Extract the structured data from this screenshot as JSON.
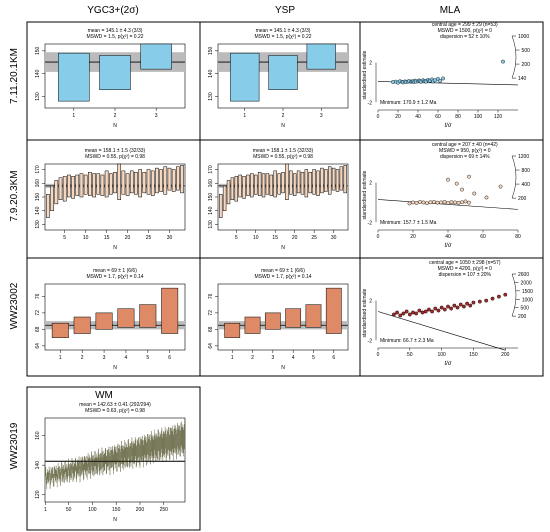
{
  "columns": [
    "YGC3+(2σ)",
    "YSP",
    "MLA"
  ],
  "rows": [
    "7.11.20.1KM",
    "7.9.20.3KM",
    "WW23002"
  ],
  "bottom_row": {
    "label": "WW23019",
    "title": "WM"
  },
  "chart_data": [
    {
      "id": "wm-7.11.20.1KM-ygc3",
      "type": "bar",
      "kind": "weighted-mean",
      "annotation": [
        "mean = 145.1 ± 4.3 (3/3)",
        "MSWD = 1.5, p(χ²) = 0.22"
      ],
      "xlabel": "N",
      "ylabel": "",
      "ylim": [
        125,
        153
      ],
      "yticks": [
        130,
        140,
        150
      ],
      "xticks": [
        1,
        2,
        3
      ],
      "mean": 145.1,
      "band": [
        140.8,
        149.4
      ],
      "bars": [
        [
          128,
          149
        ],
        [
          133,
          148
        ],
        [
          142,
          153
        ]
      ],
      "fill": "#87cdea"
    },
    {
      "id": "wm-7.11.20.1KM-ysp",
      "type": "bar",
      "kind": "weighted-mean",
      "annotation": [
        "mean = 145.1 ± 4.3 (3/3)",
        "MSWD = 1.5, p(χ²) = 0.22"
      ],
      "xlabel": "N",
      "ylabel": "",
      "ylim": [
        125,
        153
      ],
      "yticks": [
        130,
        140,
        150
      ],
      "xticks": [
        1,
        2,
        3
      ],
      "mean": 145.1,
      "band": [
        140.8,
        149.4
      ],
      "bars": [
        [
          128,
          149
        ],
        [
          133,
          148
        ],
        [
          142,
          153
        ]
      ],
      "fill": "#87cdea"
    },
    {
      "id": "rp-7.11.20.1KM",
      "type": "scatter",
      "kind": "radial-plot",
      "annotation": [
        "central age = 299 ± 29 (n=53)",
        "MSWD = 1500, p(χ²) = 0",
        "dispersion = 52 ± 10%"
      ],
      "minimum_label": "Minimum: 170.9 ± 1.2 Ma",
      "xlabel": "t/σ",
      "ylabel": "standardised estimate",
      "xlim": [
        0,
        140
      ],
      "xticks": [
        0,
        20,
        40,
        60,
        80,
        100,
        120
      ],
      "arc_ticks": [
        "1000",
        "500",
        "200",
        "140"
      ],
      "ref_line": [
        [
          0,
          0.1
        ],
        [
          140,
          -0.25
        ]
      ],
      "x": [
        15,
        18,
        20,
        22,
        24,
        25,
        27,
        28,
        30,
        31,
        33,
        34,
        35,
        36,
        37,
        38,
        40,
        41,
        42,
        43,
        45,
        46,
        47,
        48,
        50,
        51,
        52,
        54,
        55,
        57,
        60,
        62,
        65,
        125
      ],
      "y": [
        0.05,
        0.08,
        -0.02,
        0.12,
        0.06,
        0.0,
        0.1,
        0.04,
        0.08,
        0.15,
        0.06,
        0.1,
        0.12,
        0.05,
        0.18,
        0.09,
        0.11,
        0.2,
        0.14,
        0.06,
        0.22,
        0.1,
        0.16,
        0.08,
        0.25,
        0.12,
        0.18,
        0.3,
        0.1,
        0.22,
        0.35,
        0.15,
        0.4,
        2.1
      ],
      "fill": "#87cdea"
    },
    {
      "id": "wm-7.9.20.3KM-ygc3",
      "type": "bar",
      "kind": "weighted-mean",
      "annotation": [
        "mean = 158.1 ± 1.5 (32/33)",
        "MSWD = 0.55, p(χ²) = 0.98"
      ],
      "xlabel": "N",
      "ylabel": "",
      "ylim": [
        126,
        174
      ],
      "yticks": [
        130,
        140,
        150,
        160,
        170
      ],
      "xticks": [
        5,
        10,
        15,
        20,
        25,
        30
      ],
      "mean": 158.1,
      "band": [
        156.6,
        159.6
      ],
      "bars": [
        [
          135,
          152
        ],
        [
          140,
          158
        ],
        [
          145,
          162
        ],
        [
          148,
          164
        ],
        [
          147,
          165
        ],
        [
          150,
          166
        ],
        [
          149,
          165
        ],
        [
          151,
          166
        ],
        [
          150,
          167
        ],
        [
          152,
          166
        ],
        [
          151,
          168
        ],
        [
          150,
          167
        ],
        [
          152,
          167
        ],
        [
          151,
          166
        ],
        [
          150,
          169
        ],
        [
          152,
          167
        ],
        [
          153,
          168
        ],
        [
          148,
          174
        ],
        [
          152,
          169
        ],
        [
          151,
          167
        ],
        [
          153,
          169
        ],
        [
          152,
          168
        ],
        [
          150,
          170
        ],
        [
          153,
          168
        ],
        [
          152,
          170
        ],
        [
          151,
          169
        ],
        [
          153,
          171
        ],
        [
          154,
          170
        ],
        [
          152,
          172
        ],
        [
          155,
          171
        ],
        [
          154,
          170
        ],
        [
          155,
          172
        ],
        [
          153,
          173
        ]
      ],
      "fill": "#f6d7c0"
    },
    {
      "id": "wm-7.9.20.3KM-ysp",
      "type": "bar",
      "kind": "weighted-mean",
      "annotation": [
        "mean = 158.1 ± 1.5 (32/33)",
        "MSWD = 0.55, p(χ²) = 0.98"
      ],
      "xlabel": "N",
      "ylabel": "",
      "ylim": [
        126,
        174
      ],
      "yticks": [
        130,
        140,
        150,
        160,
        170
      ],
      "xticks": [
        5,
        10,
        15,
        20,
        25,
        30
      ],
      "mean": 158.1,
      "band": [
        156.6,
        159.6
      ],
      "bars": [
        [
          135,
          152
        ],
        [
          140,
          158
        ],
        [
          145,
          162
        ],
        [
          148,
          164
        ],
        [
          147,
          165
        ],
        [
          150,
          166
        ],
        [
          149,
          165
        ],
        [
          151,
          166
        ],
        [
          150,
          167
        ],
        [
          152,
          166
        ],
        [
          151,
          168
        ],
        [
          150,
          167
        ],
        [
          152,
          167
        ],
        [
          151,
          166
        ],
        [
          150,
          169
        ],
        [
          152,
          167
        ],
        [
          153,
          168
        ],
        [
          148,
          174
        ],
        [
          152,
          169
        ],
        [
          151,
          167
        ],
        [
          153,
          169
        ],
        [
          152,
          168
        ],
        [
          150,
          170
        ],
        [
          153,
          168
        ],
        [
          152,
          170
        ],
        [
          151,
          169
        ],
        [
          153,
          171
        ],
        [
          154,
          170
        ],
        [
          152,
          172
        ],
        [
          155,
          171
        ],
        [
          154,
          170
        ],
        [
          155,
          172
        ],
        [
          153,
          173
        ]
      ],
      "fill": "#f6d7c0"
    },
    {
      "id": "rp-7.9.20.3KM",
      "type": "scatter",
      "kind": "radial-plot",
      "annotation": [
        "central age = 207 ± 40 (n=42)",
        "MSWD = 950, p(χ²) = 0",
        "dispersion = 69 ± 14%"
      ],
      "minimum_label": "Minimum: 157.7 ± 1.5 Ma",
      "xlabel": "t/σ",
      "ylabel": "standardised estimate",
      "xlim": [
        0,
        80
      ],
      "xticks": [
        0,
        20,
        40,
        60,
        80
      ],
      "arc_ticks": [
        "1200",
        "800",
        "400",
        "200"
      ],
      "ref_line": [
        [
          0,
          0.3
        ],
        [
          80,
          -0.7
        ]
      ],
      "x": [
        18,
        20,
        22,
        24,
        26,
        28,
        30,
        32,
        34,
        36,
        38,
        40,
        42,
        44,
        46,
        48,
        50,
        52,
        40,
        45,
        48,
        55,
        62,
        70,
        52
      ],
      "y": [
        -0.1,
        0.0,
        -0.05,
        0.05,
        0.0,
        -0.08,
        0.02,
        0.05,
        -0.02,
        0.0,
        0.06,
        -0.05,
        0.03,
        0.0,
        -0.04,
        0.02,
        0.1,
        -0.02,
        2.3,
        1.9,
        1.3,
        0.9,
        0.5,
        1.6,
        2.6
      ],
      "fill": "#f6d7c0"
    },
    {
      "id": "wm-WW23002-ygc3",
      "type": "bar",
      "kind": "weighted-mean",
      "annotation": [
        "mean = 69 ± 1 (6/6)",
        "MSWD = 1.7, p(χ²) = 0.14"
      ],
      "xlabel": "N",
      "ylabel": "",
      "ylim": [
        63,
        79
      ],
      "yticks": [
        64,
        68,
        72,
        76
      ],
      "xticks": [
        1,
        2,
        3,
        4,
        5,
        6
      ],
      "mean": 69,
      "band": [
        68,
        70
      ],
      "bars": [
        [
          66,
          69.5
        ],
        [
          67,
          71
        ],
        [
          68,
          72
        ],
        [
          68.5,
          73
        ],
        [
          68.5,
          74
        ],
        [
          67,
          78
        ]
      ],
      "fill": "#de8a66"
    },
    {
      "id": "wm-WW23002-ysp",
      "type": "bar",
      "kind": "weighted-mean",
      "annotation": [
        "mean = 69 ± 1 (6/6)",
        "MSWD = 1.7, p(χ²) = 0.14"
      ],
      "xlabel": "N",
      "ylabel": "",
      "ylim": [
        63,
        79
      ],
      "yticks": [
        64,
        68,
        72,
        76
      ],
      "xticks": [
        1,
        2,
        3,
        4,
        5,
        6
      ],
      "mean": 69,
      "band": [
        68,
        70
      ],
      "bars": [
        [
          66,
          69.5
        ],
        [
          67,
          71
        ],
        [
          68,
          72
        ],
        [
          68.5,
          73
        ],
        [
          68.5,
          74
        ],
        [
          67,
          78
        ]
      ],
      "fill": "#de8a66"
    },
    {
      "id": "rp-WW23002",
      "type": "scatter",
      "kind": "radial-plot",
      "annotation": [
        "central age = 1050 ± 298 (n=57)",
        "MSWD = 4200, p(χ²) = 0",
        "dispersion = 107 ± 20%"
      ],
      "minimum_label": "Minimum: 66.7 ± 2.3 Ma",
      "xlabel": "t/σ",
      "ylabel": "standardised estimate",
      "xlim": [
        0,
        220
      ],
      "xticks": [
        0,
        50,
        100,
        150,
        200
      ],
      "arc_ticks": [
        "2600",
        "2000",
        "1500",
        "1000",
        "500",
        "200"
      ],
      "ref_line": [
        [
          0,
          0.9
        ],
        [
          200,
          -3.0
        ]
      ],
      "x": [
        25,
        30,
        35,
        40,
        45,
        50,
        55,
        60,
        65,
        70,
        75,
        80,
        85,
        90,
        95,
        100,
        105,
        110,
        115,
        120,
        125,
        130,
        135,
        140,
        145,
        150,
        160,
        170,
        180,
        190,
        200
      ],
      "y": [
        0.6,
        0.8,
        0.5,
        0.7,
        0.9,
        0.6,
        0.8,
        0.7,
        1.0,
        0.8,
        0.9,
        1.1,
        0.9,
        1.2,
        1.0,
        1.3,
        1.1,
        1.4,
        1.2,
        1.5,
        1.3,
        1.6,
        1.4,
        1.7,
        1.5,
        1.8,
        1.9,
        2.0,
        2.2,
        2.4,
        2.6
      ],
      "fill": "#a52a2a"
    },
    {
      "id": "wm-WW23019",
      "type": "bar",
      "kind": "weighted-mean",
      "annotation": [
        "mean = 142.63 ± 0.41 (292/294)",
        "MSWD = 0.63, p(χ²) = 0.98"
      ],
      "xlabel": "N",
      "ylabel": "",
      "ylim": [
        115,
        172
      ],
      "yticks": [
        120,
        140,
        160
      ],
      "xticks": [
        1,
        50,
        100,
        150,
        200,
        250
      ],
      "mean": 142.63,
      "band": [
        142.2,
        143.0
      ],
      "n_bars": 294,
      "low_start": 128,
      "low_end": 150,
      "high_start": 135,
      "high_end": 167,
      "fill": "#6b6b4a"
    }
  ]
}
